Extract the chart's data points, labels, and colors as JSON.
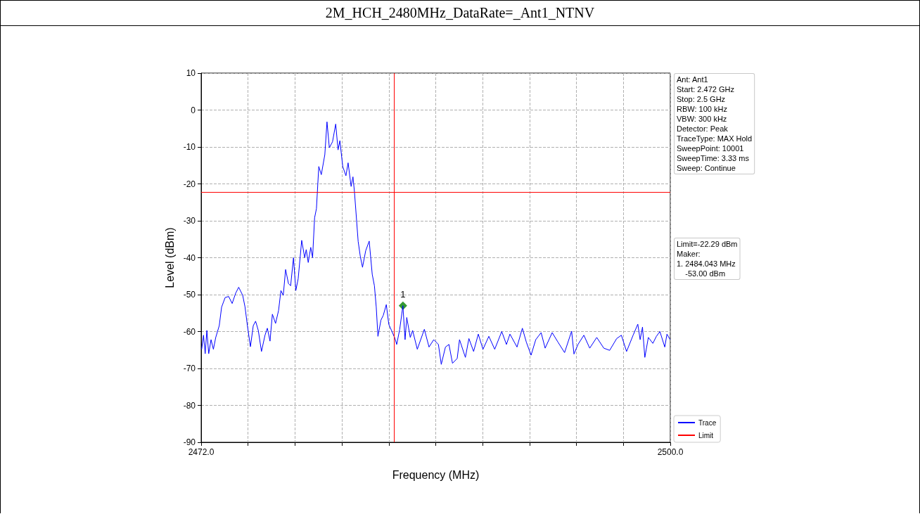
{
  "chart_data": {
    "type": "line",
    "title": "2M_HCH_2480MHz_DataRate=_Ant1_NTNV",
    "xlabel": "Frequency (MHz)",
    "ylabel": "Level (dBm)",
    "xlim": [
      2472,
      2500
    ],
    "ylim": [
      -90,
      10
    ],
    "xticks": [
      {
        "value": 2472,
        "label": "2472.0"
      },
      {
        "value": 2474.8,
        "label": null
      },
      {
        "value": 2477.6,
        "label": null
      },
      {
        "value": 2480.4,
        "label": null
      },
      {
        "value": 2483.2,
        "label": null
      },
      {
        "value": 2486,
        "label": null
      },
      {
        "value": 2488.8,
        "label": null
      },
      {
        "value": 2491.6,
        "label": null
      },
      {
        "value": 2494.4,
        "label": null
      },
      {
        "value": 2497.2,
        "label": null
      },
      {
        "value": 2500,
        "label": "2500.0"
      }
    ],
    "yticks": [
      -90,
      -80,
      -70,
      -60,
      -50,
      -40,
      -30,
      -20,
      -10,
      0,
      10
    ],
    "grid": true,
    "legend": "bottom right",
    "line_style": "solid",
    "series": [
      {
        "name": "Trace",
        "color": "#0000ff",
        "marker": "none",
        "x": [
          2472.03,
          2472.14,
          2472.24,
          2472.34,
          2472.45,
          2472.59,
          2472.73,
          2472.87,
          2473.08,
          2473.22,
          2473.43,
          2473.64,
          2473.85,
          2474.06,
          2474.24,
          2474.48,
          2474.62,
          2474.76,
          2474.94,
          2475.11,
          2475.25,
          2475.41,
          2475.6,
          2475.81,
          2475.95,
          2476.11,
          2476.25,
          2476.44,
          2476.62,
          2476.76,
          2476.9,
          2477.04,
          2477.21,
          2477.34,
          2477.51,
          2477.65,
          2477.79,
          2478.0,
          2478.18,
          2478.27,
          2478.39,
          2478.54,
          2478.65,
          2478.77,
          2478.88,
          2479.02,
          2479.17,
          2479.38,
          2479.51,
          2479.65,
          2479.84,
          2480.03,
          2480.17,
          2480.28,
          2480.45,
          2480.64,
          2480.77,
          2480.95,
          2481.06,
          2481.15,
          2481.37,
          2481.5,
          2481.63,
          2481.82,
          2482.03,
          2482.21,
          2482.34,
          2482.45,
          2482.55,
          2482.73,
          2482.87,
          2483.05,
          2483.2,
          2483.36,
          2483.57,
          2483.67,
          2483.85,
          2484.04,
          2484.17,
          2484.27,
          2484.48,
          2484.62,
          2484.9,
          2485.32,
          2485.6,
          2485.88,
          2486.16,
          2486.33,
          2486.58,
          2486.79,
          2487.0,
          2487.28,
          2487.42,
          2487.77,
          2487.98,
          2488.26,
          2488.54,
          2488.82,
          2489.17,
          2489.52,
          2489.94,
          2490.22,
          2490.43,
          2490.85,
          2491.17,
          2491.41,
          2491.69,
          2491.97,
          2492.29,
          2492.53,
          2492.95,
          2493.3,
          2493.69,
          2494.11,
          2494.25,
          2494.49,
          2494.84,
          2495.19,
          2495.61,
          2496.03,
          2496.38,
          2496.8,
          2497.08,
          2497.39,
          2497.78,
          2498.06,
          2498.2,
          2498.34,
          2498.48,
          2498.69,
          2498.96,
          2499.17,
          2499.38,
          2499.67,
          2499.8,
          2499.99
        ],
        "values": [
          -64.8,
          -61.0,
          -66.0,
          -59.7,
          -66.0,
          -62.2,
          -64.8,
          -61.6,
          -58.4,
          -53.4,
          -50.8,
          -50.5,
          -52.4,
          -49.6,
          -48.0,
          -50.2,
          -53.4,
          -58.4,
          -64.1,
          -58.4,
          -57.2,
          -59.7,
          -65.4,
          -61.0,
          -59.1,
          -62.6,
          -55.3,
          -57.8,
          -54.3,
          -48.9,
          -50.2,
          -43.2,
          -47.0,
          -47.6,
          -40.0,
          -48.9,
          -45.7,
          -35.3,
          -40.0,
          -37.8,
          -41.3,
          -37.2,
          -40.0,
          -29.2,
          -26.7,
          -15.3,
          -17.5,
          -12.1,
          -3.2,
          -10.2,
          -8.6,
          -3.8,
          -10.8,
          -8.3,
          -15.3,
          -17.8,
          -14.3,
          -20.7,
          -18.1,
          -22.2,
          -35.6,
          -39.7,
          -42.6,
          -38.1,
          -35.5,
          -44.5,
          -47.6,
          -53.4,
          -61.3,
          -56.9,
          -55.6,
          -52.7,
          -58.1,
          -59.7,
          -61.9,
          -63.5,
          -59.4,
          -53.0,
          -62.2,
          -56.2,
          -61.6,
          -59.7,
          -64.8,
          -59.4,
          -64.2,
          -62.2,
          -63.5,
          -68.9,
          -64.2,
          -63.5,
          -68.6,
          -67.3,
          -62.2,
          -67.0,
          -61.9,
          -65.4,
          -60.7,
          -64.8,
          -61.3,
          -64.8,
          -60.0,
          -63.5,
          -60.7,
          -64.2,
          -59.1,
          -62.9,
          -66.4,
          -62.2,
          -60.3,
          -64.5,
          -60.3,
          -62.9,
          -65.7,
          -59.9,
          -66.1,
          -63.5,
          -61.0,
          -64.5,
          -61.6,
          -64.5,
          -65.1,
          -61.9,
          -61.0,
          -65.4,
          -61.0,
          -58.0,
          -62.2,
          -58.8,
          -67.0,
          -61.6,
          -63.2,
          -61.3,
          -60.0,
          -64.2,
          -60.7,
          -62.2
        ]
      },
      {
        "name": "Limit",
        "color": "#ff0000",
        "marker": "none",
        "x": [
          2472,
          2500
        ],
        "values": [
          -22.29,
          -22.29
        ]
      },
      {
        "type": "scatter",
        "color": "#008000",
        "marker": "diamond",
        "x": [
          2484.043
        ],
        "values": [
          -53.0
        ]
      }
    ],
    "ref_lines": [
      {
        "axis": "x",
        "value": 2483.5,
        "color": "#ff0000"
      }
    ],
    "annotations": [
      "Ant: Ant1\nStart: 2.472 GHz\nStop: 2.5 GHz\nRBW: 100 kHz\nVBW: 300 kHz\nDetector: Peak\nTraceType: MAX Hold\nSweepPoint: 10001\nSweepTime: 3.33 ms\nSweep: Continue",
      "Limit=-22.29 dBm\nMaker:\n1. 2484.043 MHz\n    -53.00 dBm",
      {
        "text": "1",
        "x": 2484.043,
        "y": -53.0
      }
    ]
  }
}
